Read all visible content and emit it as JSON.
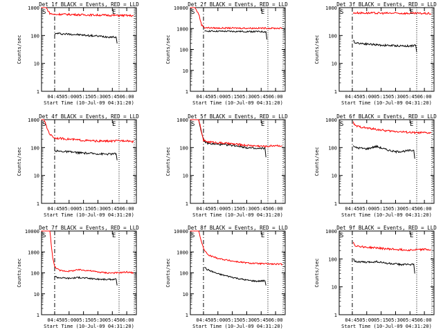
{
  "figure": {
    "ylabel": "Counts/sec",
    "xlabel": "Start Time (10-Jul-09 04:31:20)",
    "start_marker": "S",
    "end_marker": "E"
  },
  "chart_data": [
    {
      "type": "line",
      "title": "Det 1f BLACK = Events, RED = LLD",
      "ylabel": "Counts/sec",
      "xlabel": "Start Time (10-Jul-09 04:31:20)",
      "yscale": "log",
      "ylim": [
        1,
        1000
      ],
      "yticks": [
        "1",
        "10",
        "100",
        "1000"
      ],
      "xlim": [
        "04:31:20",
        "06:10:00"
      ],
      "xticks": [
        "04:45",
        "05:00",
        "05:15",
        "05:30",
        "05:45",
        "06:00"
      ],
      "start_line": "04:45",
      "end_line": "05:52",
      "series": [
        {
          "name": "Events",
          "color": "#000000",
          "x": [
            "04:45",
            "04:48",
            "04:51",
            "05:00",
            "05:05",
            "05:12",
            "05:20",
            "05:30",
            "05:40",
            "05:49",
            "05:50"
          ],
          "y": [
            110,
            120,
            115,
            112,
            110,
            105,
            100,
            95,
            90,
            88,
            52
          ]
        },
        {
          "name": "LLD",
          "color": "#ff0000",
          "x": [
            "04:31",
            "04:33",
            "04:36",
            "04:40",
            "04:45",
            "04:50",
            "05:00",
            "05:15",
            "05:30",
            "05:45",
            "06:00",
            "06:07"
          ],
          "y": [
            1000,
            1000,
            1000,
            620,
            560,
            580,
            570,
            550,
            540,
            530,
            520,
            510
          ]
        }
      ]
    },
    {
      "type": "line",
      "title": "Det 2f BLACK = Events, RED = LLD",
      "ylabel": "Counts/sec",
      "xlabel": "Start Time (10-Jul-09 04:31:20)",
      "yscale": "log",
      "ylim": [
        1,
        10000
      ],
      "yticks": [
        "1",
        "10",
        "100",
        "1000",
        "10000"
      ],
      "xlim": [
        "04:31:20",
        "06:10:00"
      ],
      "xticks": [
        "04:45",
        "05:00",
        "05:15",
        "05:30",
        "05:45",
        "06:00"
      ],
      "start_line": "04:45",
      "end_line": "05:52",
      "series": [
        {
          "name": "Events",
          "color": "#000000",
          "x": [
            "04:46",
            "04:48",
            "05:00",
            "05:15",
            "05:30",
            "05:45",
            "05:50",
            "05:51"
          ],
          "y": [
            700,
            760,
            740,
            730,
            720,
            710,
            700,
            300
          ]
        },
        {
          "name": "LLD",
          "color": "#ff0000",
          "x": [
            "04:31",
            "04:36",
            "04:40",
            "04:43",
            "04:46",
            "05:00",
            "05:15",
            "05:30",
            "05:45",
            "06:00",
            "06:07"
          ],
          "y": [
            10000,
            10000,
            5000,
            1500,
            1100,
            1050,
            1050,
            1040,
            1040,
            1030,
            1030
          ]
        }
      ]
    },
    {
      "type": "line",
      "title": "Det 3f BLACK = Events, RED = LLD",
      "ylabel": "Counts/sec",
      "xlabel": "Start Time (10-Jul-09 04:31:20)",
      "yscale": "log",
      "ylim": [
        1,
        1000
      ],
      "yticks": [
        "1",
        "10",
        "100",
        "1000"
      ],
      "xlim": [
        "04:31:20",
        "06:10:00"
      ],
      "xticks": [
        "04:45",
        "05:00",
        "05:15",
        "05:30",
        "05:45",
        "06:00"
      ],
      "start_line": "04:45",
      "end_line": "05:52",
      "series": [
        {
          "name": "Events",
          "color": "#000000",
          "x": [
            "04:46",
            "04:48",
            "05:00",
            "05:15",
            "05:30",
            "05:45",
            "05:51",
            "05:52"
          ],
          "y": [
            65,
            55,
            50,
            45,
            43,
            42,
            45,
            25
          ]
        },
        {
          "name": "LLD",
          "color": "#ff0000",
          "x": [
            "04:46",
            "04:48",
            "05:00",
            "05:15",
            "05:30",
            "05:45",
            "06:00",
            "06:07"
          ],
          "y": [
            620,
            650,
            640,
            630,
            630,
            620,
            620,
            610
          ]
        }
      ]
    },
    {
      "type": "line",
      "title": "Det 4f BLACK = Events, RED = LLD",
      "ylabel": "Counts/sec",
      "xlabel": "Start Time (10-Jul-09 04:31:20)",
      "yscale": "log",
      "ylim": [
        1,
        1000
      ],
      "yticks": [
        "1",
        "10",
        "100",
        "1000"
      ],
      "xlim": [
        "04:31:20",
        "06:10:00"
      ],
      "xticks": [
        "04:45",
        "05:00",
        "05:15",
        "05:30",
        "05:45",
        "06:00"
      ],
      "start_line": "04:45",
      "end_line": "05:52",
      "series": [
        {
          "name": "Events",
          "color": "#000000",
          "x": [
            "04:45",
            "04:47",
            "05:00",
            "05:10",
            "05:20",
            "05:30",
            "05:40",
            "05:49",
            "05:50"
          ],
          "y": [
            80,
            75,
            70,
            65,
            62,
            60,
            58,
            60,
            35
          ]
        },
        {
          "name": "LLD",
          "color": "#ff0000",
          "x": [
            "04:31",
            "04:34",
            "04:37",
            "04:40",
            "04:45",
            "05:00",
            "05:15",
            "05:30",
            "05:45",
            "06:00",
            "06:07"
          ],
          "y": [
            1000,
            1000,
            500,
            300,
            220,
            200,
            180,
            170,
            170,
            180,
            160
          ]
        }
      ]
    },
    {
      "type": "line",
      "title": "Det 5f BLACK = Events, RED = LLD",
      "ylabel": "Counts/sec",
      "xlabel": "Start Time (10-Jul-09 04:31:20)",
      "yscale": "log",
      "ylim": [
        1,
        1000
      ],
      "yticks": [
        "1",
        "10",
        "100",
        "1000"
      ],
      "xlim": [
        "04:31:20",
        "06:10:00"
      ],
      "xticks": [
        "04:45",
        "05:00",
        "05:15",
        "05:30",
        "05:45",
        "06:00"
      ],
      "start_line": "04:45",
      "end_line": "05:52",
      "series": [
        {
          "name": "Events",
          "color": "#000000",
          "x": [
            "04:31",
            "04:40",
            "04:45",
            "04:50",
            "05:00",
            "05:10",
            "05:20",
            "05:30",
            "05:40",
            "05:49",
            "05:50"
          ],
          "y": [
            1000,
            1000,
            170,
            140,
            130,
            125,
            115,
            100,
            90,
            95,
            45
          ]
        },
        {
          "name": "LLD",
          "color": "#ff0000",
          "x": [
            "04:31",
            "04:40",
            "04:45",
            "04:50",
            "05:00",
            "05:10",
            "05:20",
            "05:30",
            "05:40",
            "05:50",
            "06:00",
            "06:07"
          ],
          "y": [
            1000,
            1000,
            180,
            160,
            150,
            140,
            130,
            120,
            115,
            110,
            120,
            115
          ]
        }
      ]
    },
    {
      "type": "line",
      "title": "Det 6f BLACK = Events, RED = LLD",
      "ylabel": "Counts/sec",
      "xlabel": "Start Time (10-Jul-09 04:31:20)",
      "yscale": "log",
      "ylim": [
        1,
        1000
      ],
      "yticks": [
        "1",
        "10",
        "100",
        "1000"
      ],
      "xlim": [
        "04:31:20",
        "06:10:00"
      ],
      "xticks": [
        "04:45",
        "05:00",
        "05:15",
        "05:30",
        "05:45",
        "06:00"
      ],
      "start_line": "04:45",
      "end_line": "05:52",
      "series": [
        {
          "name": "Events",
          "color": "#000000",
          "x": [
            "04:46",
            "04:48",
            "05:00",
            "05:10",
            "05:20",
            "05:30",
            "05:40",
            "05:49",
            "05:50"
          ],
          "y": [
            120,
            100,
            90,
            110,
            85,
            70,
            75,
            80,
            40
          ]
        },
        {
          "name": "LLD",
          "color": "#ff0000",
          "x": [
            "04:46",
            "04:48",
            "05:00",
            "05:10",
            "05:20",
            "05:30",
            "05:40",
            "05:50",
            "06:00",
            "06:07"
          ],
          "y": [
            800,
            600,
            500,
            450,
            400,
            380,
            360,
            340,
            340,
            330
          ]
        }
      ]
    },
    {
      "type": "line",
      "title": "Det 7f BLACK = Events, RED = LLD",
      "ylabel": "Counts/sec",
      "xlabel": "Start Time (10-Jul-09 04:31:20)",
      "yscale": "log",
      "ylim": [
        1,
        10000
      ],
      "yticks": [
        "1",
        "10",
        "100",
        "1000",
        "10000"
      ],
      "xlim": [
        "04:31:20",
        "06:10:00"
      ],
      "xticks": [
        "04:45",
        "05:00",
        "05:15",
        "05:30",
        "05:45",
        "06:00"
      ],
      "start_line": "04:45",
      "end_line": "05:52",
      "series": [
        {
          "name": "Events",
          "color": "#000000",
          "x": [
            "04:45",
            "04:48",
            "05:00",
            "05:10",
            "05:20",
            "05:30",
            "05:40",
            "05:49",
            "05:50"
          ],
          "y": [
            70,
            60,
            55,
            60,
            55,
            50,
            48,
            50,
            25
          ]
        },
        {
          "name": "LLD",
          "color": "#ff0000",
          "x": [
            "04:31",
            "04:40",
            "04:43",
            "04:45",
            "04:50",
            "05:00",
            "05:10",
            "05:20",
            "05:30",
            "05:40",
            "05:50",
            "06:00",
            "06:07"
          ],
          "y": [
            10000,
            10000,
            500,
            200,
            130,
            120,
            140,
            130,
            110,
            100,
            100,
            110,
            100
          ]
        }
      ]
    },
    {
      "type": "line",
      "title": "Det 8f BLACK = Events, RED = LLD",
      "ylabel": "Counts/sec",
      "xlabel": "Start Time (10-Jul-09 04:31:20)",
      "yscale": "log",
      "ylim": [
        1,
        10000
      ],
      "yticks": [
        "1",
        "10",
        "100",
        "1000",
        "10000"
      ],
      "xlim": [
        "04:31:20",
        "06:10:00"
      ],
      "xticks": [
        "04:45",
        "05:00",
        "05:15",
        "05:30",
        "05:45",
        "06:00"
      ],
      "start_line": "04:45",
      "end_line": "05:52",
      "series": [
        {
          "name": "Events",
          "color": "#000000",
          "x": [
            "04:46",
            "04:48",
            "05:00",
            "05:10",
            "05:20",
            "05:30",
            "05:40",
            "05:49",
            "05:50"
          ],
          "y": [
            200,
            150,
            90,
            70,
            55,
            45,
            40,
            42,
            25
          ]
        },
        {
          "name": "LLD",
          "color": "#ff0000",
          "x": [
            "04:31",
            "04:40",
            "04:44",
            "04:46",
            "04:50",
            "05:00",
            "05:10",
            "05:20",
            "05:30",
            "05:40",
            "05:50",
            "06:00",
            "06:07"
          ],
          "y": [
            10000,
            10000,
            2000,
            1200,
            700,
            500,
            400,
            340,
            300,
            280,
            270,
            260,
            260
          ]
        }
      ]
    },
    {
      "type": "line",
      "title": "Det 9f BLACK = Events, RED = LLD",
      "ylabel": "Counts/sec",
      "xlabel": "Start Time (10-Jul-09 04:31:20)",
      "yscale": "log",
      "ylim": [
        1,
        1000
      ],
      "yticks": [
        "1",
        "10",
        "100",
        "1000"
      ],
      "xlim": [
        "04:31:20",
        "06:10:00"
      ],
      "xticks": [
        "04:45",
        "05:00",
        "05:15",
        "05:30",
        "05:45",
        "06:00"
      ],
      "start_line": "04:45",
      "end_line": "05:52",
      "series": [
        {
          "name": "Events",
          "color": "#000000",
          "x": [
            "04:46",
            "04:48",
            "05:00",
            "05:10",
            "05:20",
            "05:30",
            "05:40",
            "05:49",
            "05:50"
          ],
          "y": [
            110,
            80,
            75,
            80,
            70,
            65,
            62,
            65,
            30
          ]
        },
        {
          "name": "LLD",
          "color": "#ff0000",
          "x": [
            "04:46",
            "04:48",
            "05:00",
            "05:10",
            "05:20",
            "05:30",
            "05:40",
            "05:50",
            "06:00",
            "06:07"
          ],
          "y": [
            400,
            300,
            260,
            250,
            230,
            220,
            210,
            210,
            220,
            210
          ]
        }
      ]
    }
  ]
}
